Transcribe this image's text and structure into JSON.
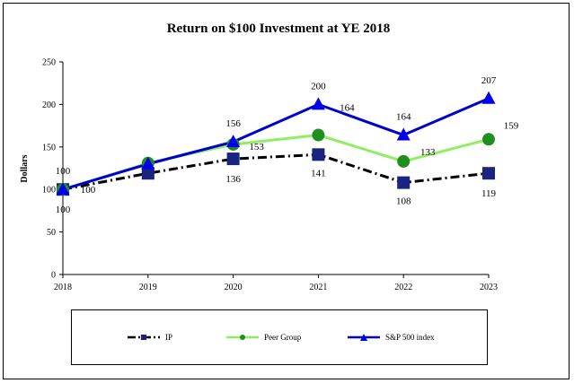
{
  "chart_data": {
    "type": "line",
    "title": "Return on $100 Investment at YE 2018",
    "xlabel": "",
    "ylabel": "Dollars",
    "categories": [
      "2018",
      "2019",
      "2020",
      "2021",
      "2022",
      "2023"
    ],
    "ylim": [
      0,
      250
    ],
    "yticks": [
      "0",
      "50",
      "100",
      "150",
      "200",
      "250"
    ],
    "series": [
      {
        "name": "IP",
        "values": [
          100,
          119,
          136,
          141,
          108,
          119
        ],
        "labels": [
          "100",
          "",
          "136",
          "141",
          "108",
          "119"
        ],
        "color": "#000000",
        "marker": "square",
        "marker_color": "#1a237e",
        "line_style": "dashdot"
      },
      {
        "name": "Peer Group",
        "values": [
          100,
          131,
          153,
          164,
          133,
          159
        ],
        "labels": [
          "100",
          "",
          "153",
          "164",
          "133",
          "159"
        ],
        "color": "#90ee60",
        "marker": "circle",
        "marker_color": "#1f8f1f",
        "line_style": "solid"
      },
      {
        "name": "S&P 500 index",
        "values": [
          100,
          130,
          156,
          200,
          164,
          207
        ],
        "labels": [
          "100",
          "",
          "156",
          "200",
          "164",
          "207"
        ],
        "color": "#0000cc",
        "marker": "triangle",
        "marker_color": "#0000ee",
        "line_style": "solid"
      }
    ],
    "legend": "bottom"
  }
}
